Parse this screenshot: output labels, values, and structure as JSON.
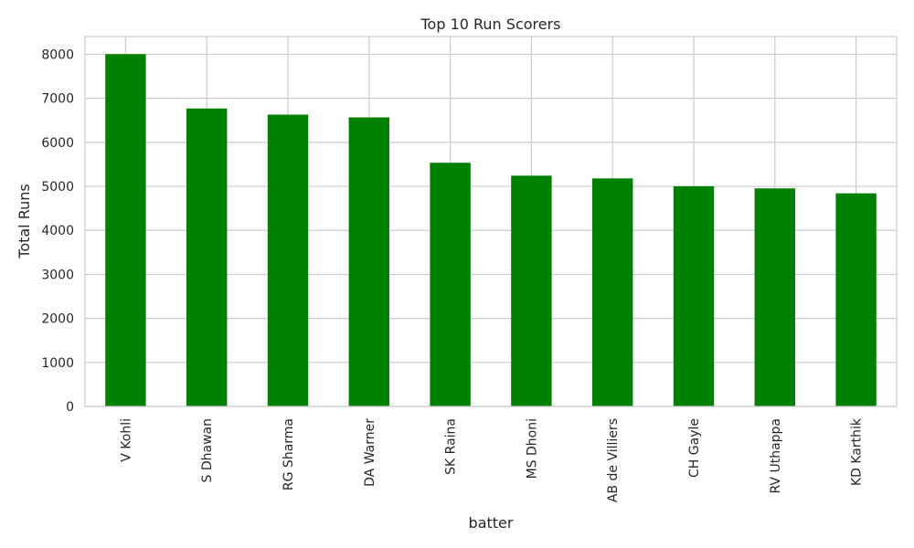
{
  "chart_data": {
    "type": "bar",
    "title": "Top 10 Run Scorers",
    "xlabel": "batter",
    "ylabel": "Total Runs",
    "categories": [
      "V Kohli",
      "S Dhawan",
      "RG Sharma",
      "DA Warner",
      "SK Raina",
      "MS Dhoni",
      "AB de Villiers",
      "CH Gayle",
      "RV Uthappa",
      "KD Karthik"
    ],
    "values": [
      8004,
      6769,
      6630,
      6567,
      5536,
      5243,
      5181,
      5003,
      4954,
      4842
    ],
    "ylim": [
      0,
      8404
    ],
    "yticks": [
      0,
      1000,
      2000,
      3000,
      4000,
      5000,
      6000,
      7000,
      8000
    ],
    "bar_color": "#008000",
    "grid": true
  }
}
